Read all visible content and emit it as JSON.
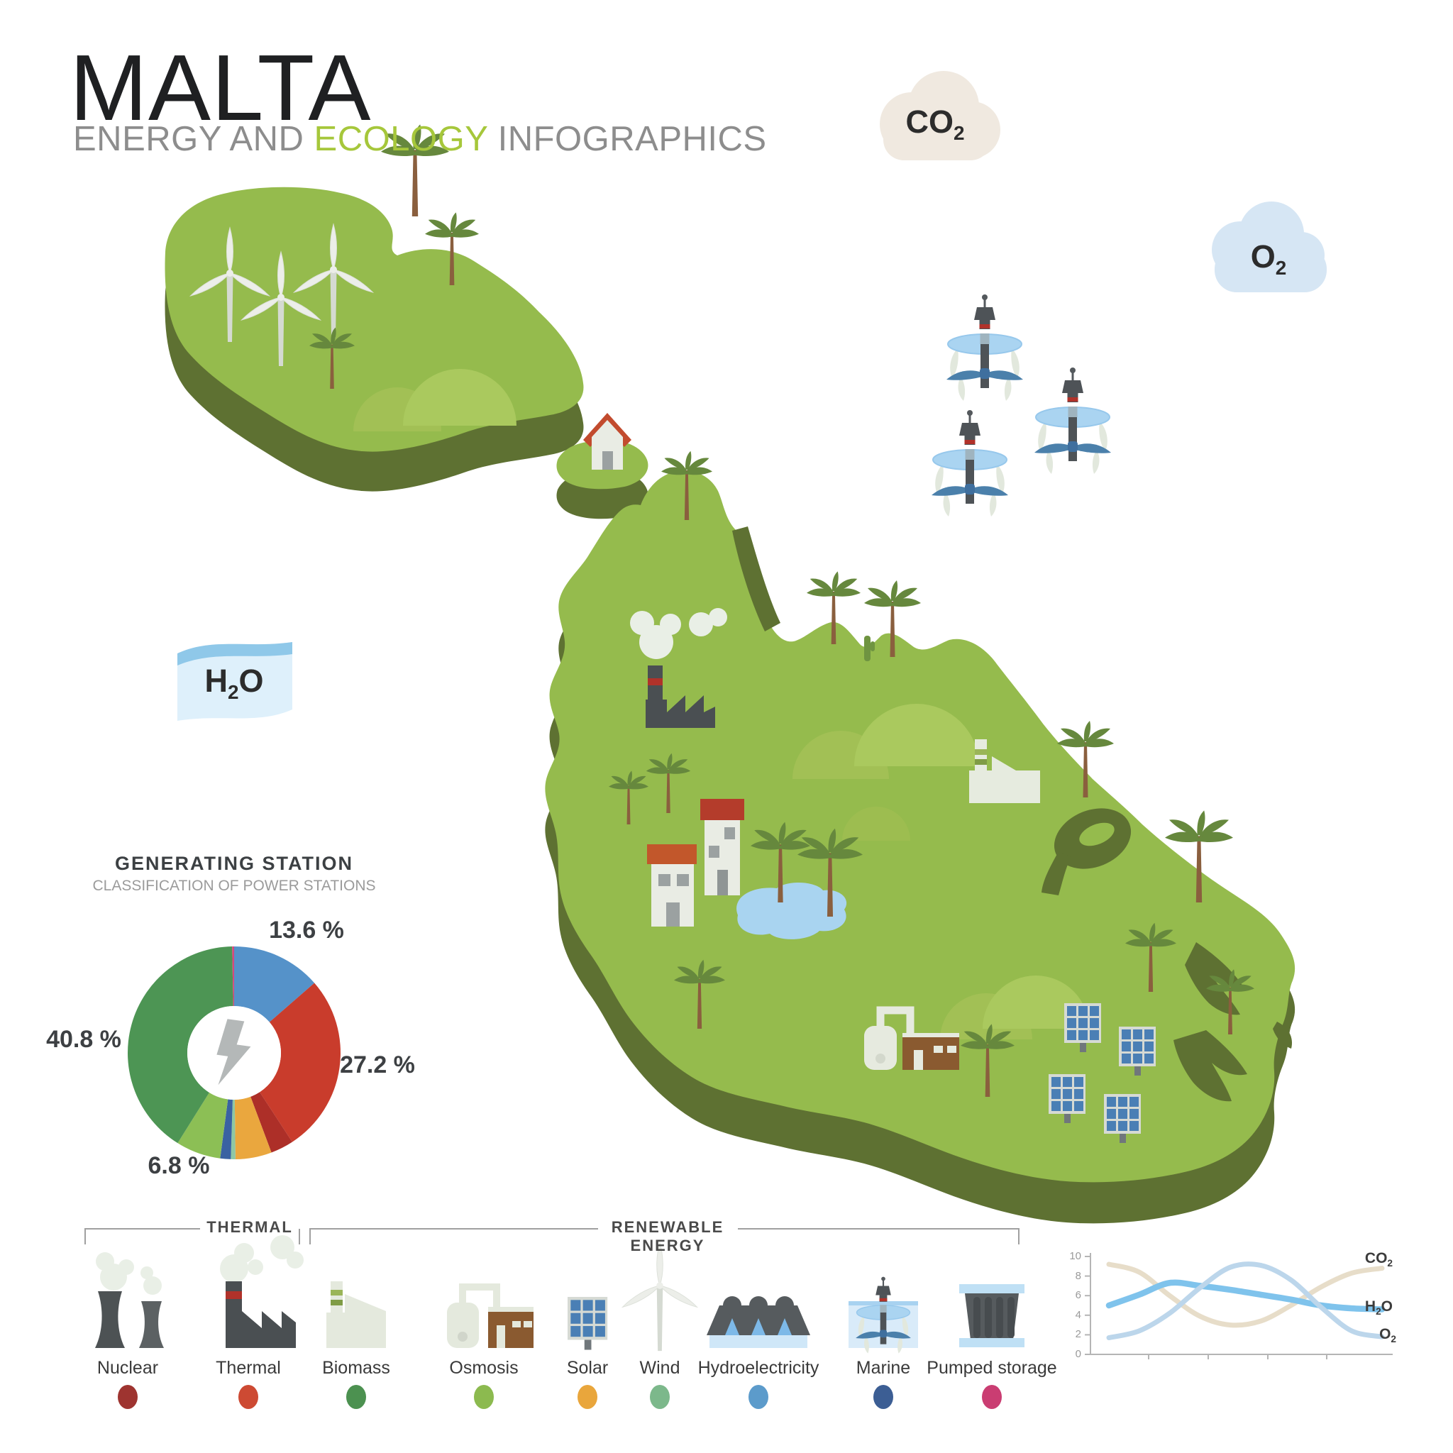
{
  "header": {
    "title": "MALTA",
    "subtitle_prefix": "ENERGY AND ",
    "subtitle_highlight": "ECOLOGY",
    "subtitle_suffix": " INFOGRAPHICS",
    "highlight_color": "#a6c73b"
  },
  "clouds": {
    "co2": {
      "base": "CO",
      "sub": "2",
      "fill": "#f0e9e0"
    },
    "o2": {
      "base": "O",
      "sub": "2",
      "fill": "#d6e6f4"
    },
    "h2o": {
      "pre": "H",
      "sub": "2",
      "post": "O",
      "fill": "#def0fb",
      "stripe": "#8fc8e9"
    }
  },
  "map": {
    "island_top_color": "#95bb4d",
    "island_side_color": "#5e7132",
    "icons": [
      "wind-turbine",
      "palm-tree",
      "cactus",
      "house",
      "factory",
      "biomass-plant",
      "osmosis-station",
      "solar-panel",
      "pond",
      "hill",
      "marine-turbine",
      "smoke-cloud"
    ]
  },
  "chart_data": [
    {
      "type": "donut",
      "title": "GENERATING STATION",
      "subtitle": "CLASSIFICATION OF POWER STATIONS",
      "center_icon": "lightning-bolt",
      "start_angle_deg": -90,
      "clockwise": true,
      "segments": [
        {
          "name": "Hydroelectricity",
          "value": 13.6,
          "color": "#5592c9",
          "label": "13.6 %"
        },
        {
          "name": "Thermal",
          "value": 27.2,
          "color": "#c93c2c",
          "label": "27.2 %"
        },
        {
          "name": "Nuclear",
          "value": 3.5,
          "color": "#ad2f28"
        },
        {
          "name": "Solar",
          "value": 5.5,
          "color": "#eaa73e"
        },
        {
          "name": "Wind",
          "value": 0.7,
          "color": "#8fc7a3"
        },
        {
          "name": "Marine",
          "value": 1.6,
          "color": "#3a62a2"
        },
        {
          "name": "Osmosis",
          "value": 6.8,
          "color": "#8cbf55",
          "label": "6.8 %"
        },
        {
          "name": "Biomass",
          "value": 40.8,
          "color": "#4d9554",
          "label": "40.8 %"
        },
        {
          "name": "Pumped storage",
          "value": 0.3,
          "color": "#d7487d"
        }
      ]
    },
    {
      "type": "line",
      "ylim": [
        0,
        10
      ],
      "yticks": [
        0,
        2,
        4,
        6,
        8,
        10
      ],
      "x_gridlines": false,
      "series": [
        {
          "name": "CO2",
          "color": "#e7ddc9",
          "values": [
            9.2,
            8.4,
            6.0,
            3.9,
            3.0,
            3.4,
            5.0,
            6.9,
            8.3,
            8.8
          ]
        },
        {
          "name": "H2O",
          "color": "#7fc3ec",
          "values": [
            5.0,
            6.1,
            7.3,
            7.0,
            6.6,
            6.1,
            5.6,
            5.0,
            4.7,
            4.6
          ]
        },
        {
          "name": "O2",
          "color": "#bcd6eb",
          "values": [
            1.7,
            2.4,
            4.2,
            6.8,
            8.9,
            9.1,
            7.6,
            4.8,
            2.4,
            1.8
          ]
        }
      ],
      "labels": {
        "co2": {
          "base": "CO",
          "sub": "2"
        },
        "h2o": {
          "pre": "H",
          "sub": "2",
          "post": "O"
        },
        "o2": {
          "base": "O",
          "sub": "2"
        }
      }
    }
  ],
  "legend": {
    "groups": [
      {
        "label": "THERMAL"
      },
      {
        "label": "RENEWABLE ENERGY"
      }
    ],
    "items": [
      {
        "label": "Nuclear",
        "dot_color": "#9e3430"
      },
      {
        "label": "Thermal",
        "dot_color": "#cd4a33"
      },
      {
        "label": "Biomass",
        "dot_color": "#4c9150"
      },
      {
        "label": "Osmosis",
        "dot_color": "#8cba4f"
      },
      {
        "label": "Solar",
        "dot_color": "#e9a63c"
      },
      {
        "label": "Wind",
        "dot_color": "#7cb88b"
      },
      {
        "label": "Hydroelectricity",
        "dot_color": "#5c9bcb"
      },
      {
        "label": "Marine",
        "dot_color": "#3c5e94"
      },
      {
        "label": "Pumped storage",
        "dot_color": "#ca3d72"
      }
    ]
  }
}
